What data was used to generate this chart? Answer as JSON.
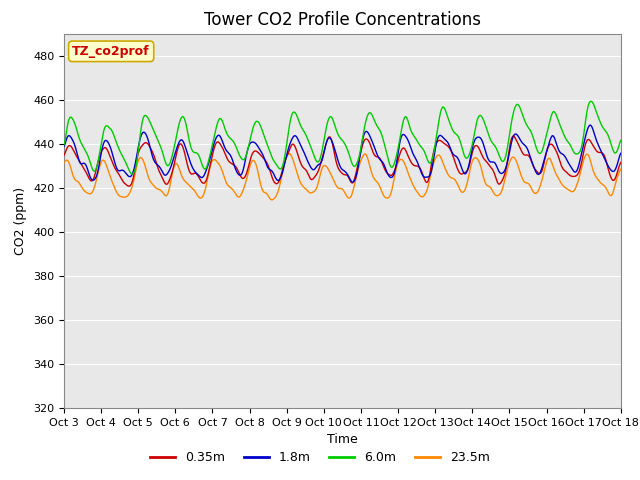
{
  "title": "Tower CO2 Profile Concentrations",
  "xlabel": "Time",
  "ylabel": "CO2 (ppm)",
  "ylim": [
    320,
    490
  ],
  "yticks": [
    320,
    340,
    360,
    380,
    400,
    420,
    440,
    460,
    480
  ],
  "x_labels": [
    "Oct 3",
    "Oct 4",
    "Oct 5",
    "Oct 6",
    "Oct 7",
    "Oct 8",
    "Oct 9",
    "Oct 10",
    "Oct 11",
    "Oct 12",
    "Oct 13",
    "Oct 14",
    "Oct 15",
    "Oct 16",
    "Oct 17",
    "Oct 18"
  ],
  "series": {
    "0.35m": {
      "color": "#cc0000",
      "linewidth": 1.0
    },
    "1.8m": {
      "color": "#0000cc",
      "linewidth": 1.0
    },
    "6.0m": {
      "color": "#00cc00",
      "linewidth": 1.0
    },
    "23.5m": {
      "color": "#ff8800",
      "linewidth": 1.0
    }
  },
  "legend_label": "TZ_co2prof",
  "legend_box_facecolor": "#ffffcc",
  "legend_box_edgecolor": "#ccaa00",
  "legend_text_color": "#cc0000",
  "background_color": "#e8e8e8",
  "title_fontsize": 12,
  "axis_fontsize": 9,
  "tick_fontsize": 8,
  "n_points": 480,
  "seed": 17
}
